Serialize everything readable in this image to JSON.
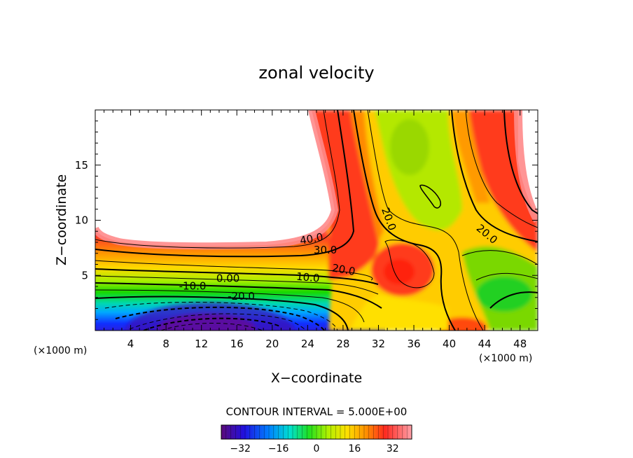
{
  "chart_data": {
    "type": "contour",
    "title": "zonal velocity",
    "xlabel": "X−coordinate",
    "ylabel": "Z−coordinate",
    "x_unit": "(×1000 m)",
    "y_unit": "(×1000 m)",
    "xlim": [
      0,
      50
    ],
    "ylim": [
      0,
      20
    ],
    "xticks": [
      4,
      8,
      12,
      16,
      20,
      24,
      28,
      32,
      36,
      40,
      44,
      48
    ],
    "yticks": [
      5,
      10,
      15
    ],
    "contour_interval_text": "CONTOUR INTERVAL = 5.000E+00",
    "contour_interval": 5.0,
    "contour_labels": [
      {
        "text": "40.0",
        "x": 24.5,
        "y": 8.0,
        "angle": -10
      },
      {
        "text": "30.0",
        "x": 26.0,
        "y": 7.0,
        "angle": 0
      },
      {
        "text": "20.0",
        "x": 28.0,
        "y": 5.2,
        "angle": 10
      },
      {
        "text": "10.0",
        "x": 24.0,
        "y": 4.5,
        "angle": 5
      },
      {
        "text": "0.00",
        "x": 15.0,
        "y": 4.4,
        "angle": 0
      },
      {
        "text": "-10.0",
        "x": 11.0,
        "y": 3.7,
        "angle": 0
      },
      {
        "text": "-20.0",
        "x": 16.5,
        "y": 2.8,
        "angle": 0
      },
      {
        "text": "20.0",
        "x": 32.8,
        "y": 10.0,
        "angle": 70
      },
      {
        "text": "20.0",
        "x": 44.0,
        "y": 8.5,
        "angle": 40
      }
    ],
    "colorbar": {
      "min": -40,
      "max": 40,
      "tick_values": [
        -32,
        -16,
        0,
        16,
        32
      ],
      "tick_labels": [
        "−32",
        "−16",
        "0",
        "16",
        "32"
      ]
    }
  }
}
